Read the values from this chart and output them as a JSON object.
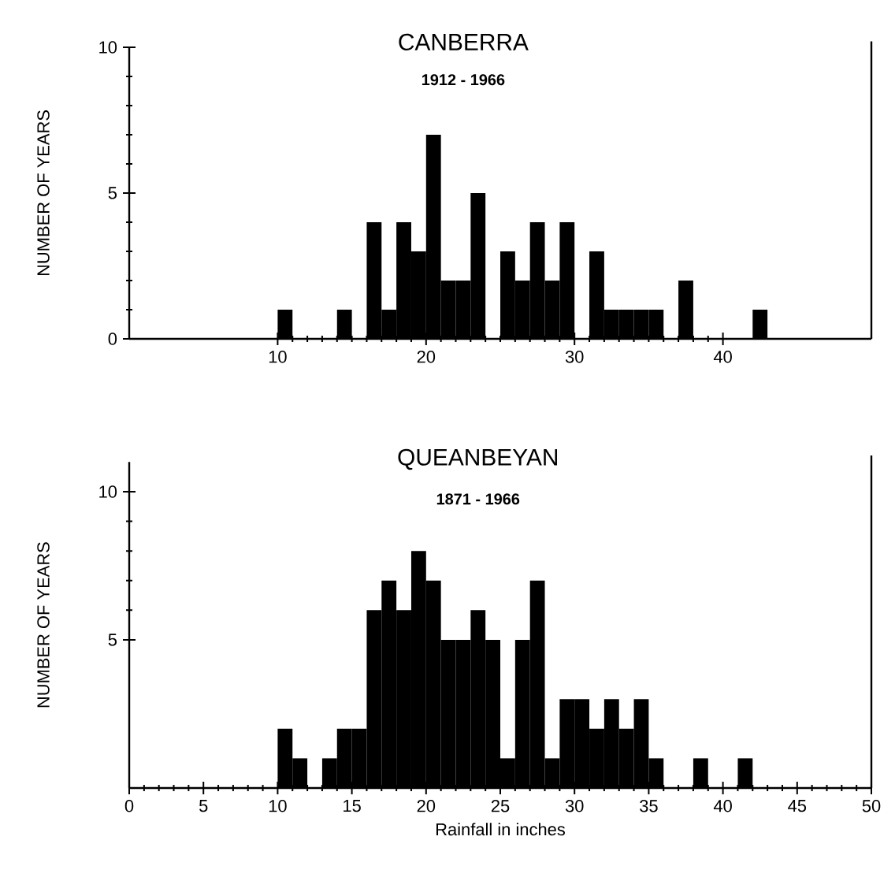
{
  "chart_data": [
    {
      "type": "histogram",
      "title": "CANBERRA",
      "subtitle": "1912 - 1966",
      "ylabel": "NUMBER OF YEARS",
      "color": "#000000",
      "bins": [
        10,
        11,
        12,
        13,
        14,
        15,
        16,
        17,
        18,
        19,
        20,
        21,
        22,
        23,
        24,
        25,
        26,
        27,
        28,
        29,
        30,
        31,
        32,
        33,
        34,
        35,
        36,
        37,
        38,
        39,
        40,
        41,
        42,
        43
      ],
      "values": [
        1,
        0,
        0,
        0,
        1,
        0,
        4,
        1,
        4,
        3,
        7,
        2,
        2,
        5,
        0,
        3,
        2,
        4,
        2,
        4,
        0,
        3,
        1,
        1,
        1,
        1,
        0,
        2,
        0,
        0,
        0,
        0,
        1
      ],
      "xlim": [
        0,
        50
      ],
      "xticks": [
        10,
        20,
        30,
        40
      ],
      "ylim": [
        0,
        10
      ],
      "yticks": [
        0,
        5,
        10
      ]
    },
    {
      "type": "histogram",
      "title": "QUEANBEYAN",
      "subtitle": "1871 - 1966",
      "ylabel": "NUMBER OF YEARS",
      "xlabel": "Rainfall in inches",
      "color": "#000000",
      "bins": [
        10,
        11,
        12,
        13,
        14,
        15,
        16,
        17,
        18,
        19,
        20,
        21,
        22,
        23,
        24,
        25,
        26,
        27,
        28,
        29,
        30,
        31,
        32,
        33,
        34,
        35,
        36,
        37,
        38,
        39,
        40,
        41,
        42
      ],
      "values": [
        2,
        1,
        0,
        1,
        2,
        2,
        6,
        7,
        6,
        8,
        7,
        5,
        5,
        6,
        5,
        1,
        5,
        7,
        1,
        3,
        3,
        2,
        3,
        2,
        3,
        1,
        0,
        0,
        1,
        0,
        0,
        1
      ],
      "xlim": [
        0,
        50
      ],
      "xticks": [
        0,
        5,
        10,
        15,
        20,
        25,
        30,
        35,
        40,
        45,
        50
      ],
      "ylim": [
        0,
        11
      ],
      "yticks": [
        5,
        10
      ]
    }
  ]
}
